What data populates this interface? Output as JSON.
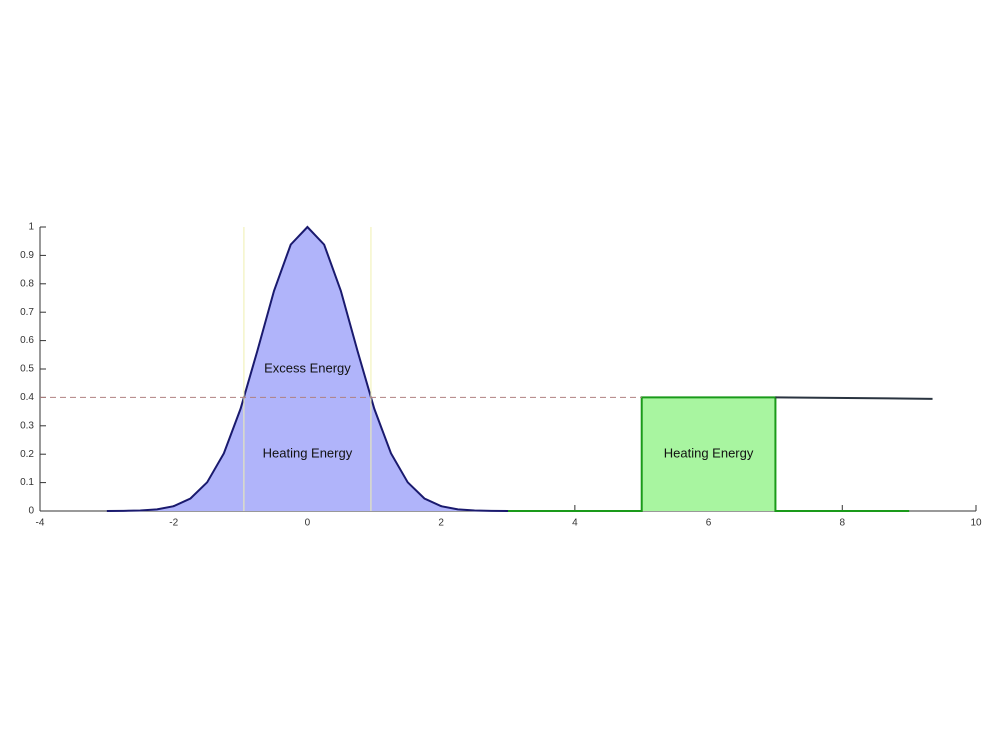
{
  "chart_data": {
    "type": "area",
    "xlim": [
      -4,
      10
    ],
    "ylim": [
      0,
      1
    ],
    "xticks": [
      -4,
      -2,
      0,
      2,
      4,
      6,
      8,
      10
    ],
    "yticks": [
      0,
      0.1,
      0.2,
      0.3,
      0.4,
      0.5,
      0.6,
      0.7,
      0.8,
      0.9,
      1
    ],
    "hline": 0.4,
    "hline_color": "#b08080",
    "vlines": [
      -0.95,
      0.95
    ],
    "vline_color": "#f0f0b0",
    "series": [
      {
        "color": "#1a1a6e",
        "fill": "#b0b4fa",
        "x": [
          -3,
          -2.75,
          -2.5,
          -2.25,
          -2,
          -1.75,
          -1.5,
          -1.25,
          -1,
          -0.75,
          -0.5,
          -0.25,
          0,
          0.25,
          0.5,
          0.75,
          1,
          1.25,
          1.5,
          1.75,
          2,
          2.25,
          2.5,
          2.75,
          3
        ],
        "values": [
          0.0001,
          0.0004,
          0.0017,
          0.0057,
          0.017,
          0.044,
          0.101,
          0.203,
          0.36,
          0.563,
          0.775,
          0.938,
          1,
          0.938,
          0.775,
          0.563,
          0.36,
          0.203,
          0.101,
          0.044,
          0.017,
          0.0057,
          0.0017,
          0.0004,
          0.0001
        ]
      },
      {
        "color": "#1a9a1a",
        "fill": "#a8f5a0",
        "x": [
          3,
          5,
          5,
          7,
          7,
          9
        ],
        "values": [
          0,
          0,
          0.4,
          0.4,
          0,
          0
        ]
      },
      {
        "color": "#2a3440",
        "x": [
          7,
          9.35
        ],
        "values": [
          0.4,
          0.395
        ]
      }
    ],
    "annotations": [
      {
        "text": "Excess Energy",
        "x": 0,
        "y": 0.5
      },
      {
        "text": "Heating Energy",
        "x": 0,
        "y": 0.2
      },
      {
        "text": "Heating Energy",
        "x": 6,
        "y": 0.2
      }
    ]
  }
}
